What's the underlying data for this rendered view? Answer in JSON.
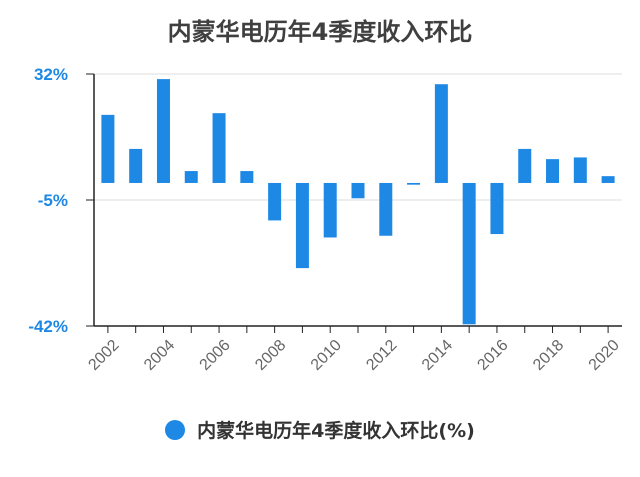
{
  "chart_data": {
    "type": "bar",
    "title": "内蒙华电历年4季度收入环比",
    "categories": [
      "2002",
      "2003",
      "2004",
      "2005",
      "2006",
      "2007",
      "2008",
      "2009",
      "2010",
      "2011",
      "2012",
      "2013",
      "2014",
      "2015",
      "2016",
      "2017",
      "2018",
      "2019",
      "2020"
    ],
    "series": [
      {
        "name": "内蒙华电历年4季度收入环比(%)",
        "values": [
          20,
          10,
          30.5,
          3.5,
          20.5,
          3.5,
          -11,
          -25,
          -16,
          -4.5,
          -15.5,
          -0.5,
          29,
          -41.5,
          -15,
          10,
          7,
          7.5,
          2
        ]
      }
    ],
    "ylim": [
      -42,
      32
    ],
    "yticks": [
      "32%",
      "-5%",
      "-42%"
    ],
    "xticks": [
      "2002",
      "2004",
      "2006",
      "2008",
      "2010",
      "2012",
      "2014",
      "2016",
      "2018",
      "2020"
    ],
    "legend_position": "bottom",
    "grid": true,
    "colors": {
      "bar": "#1e88e5",
      "axis_label": "#1e88e5",
      "title": "#3f3f3f"
    }
  }
}
